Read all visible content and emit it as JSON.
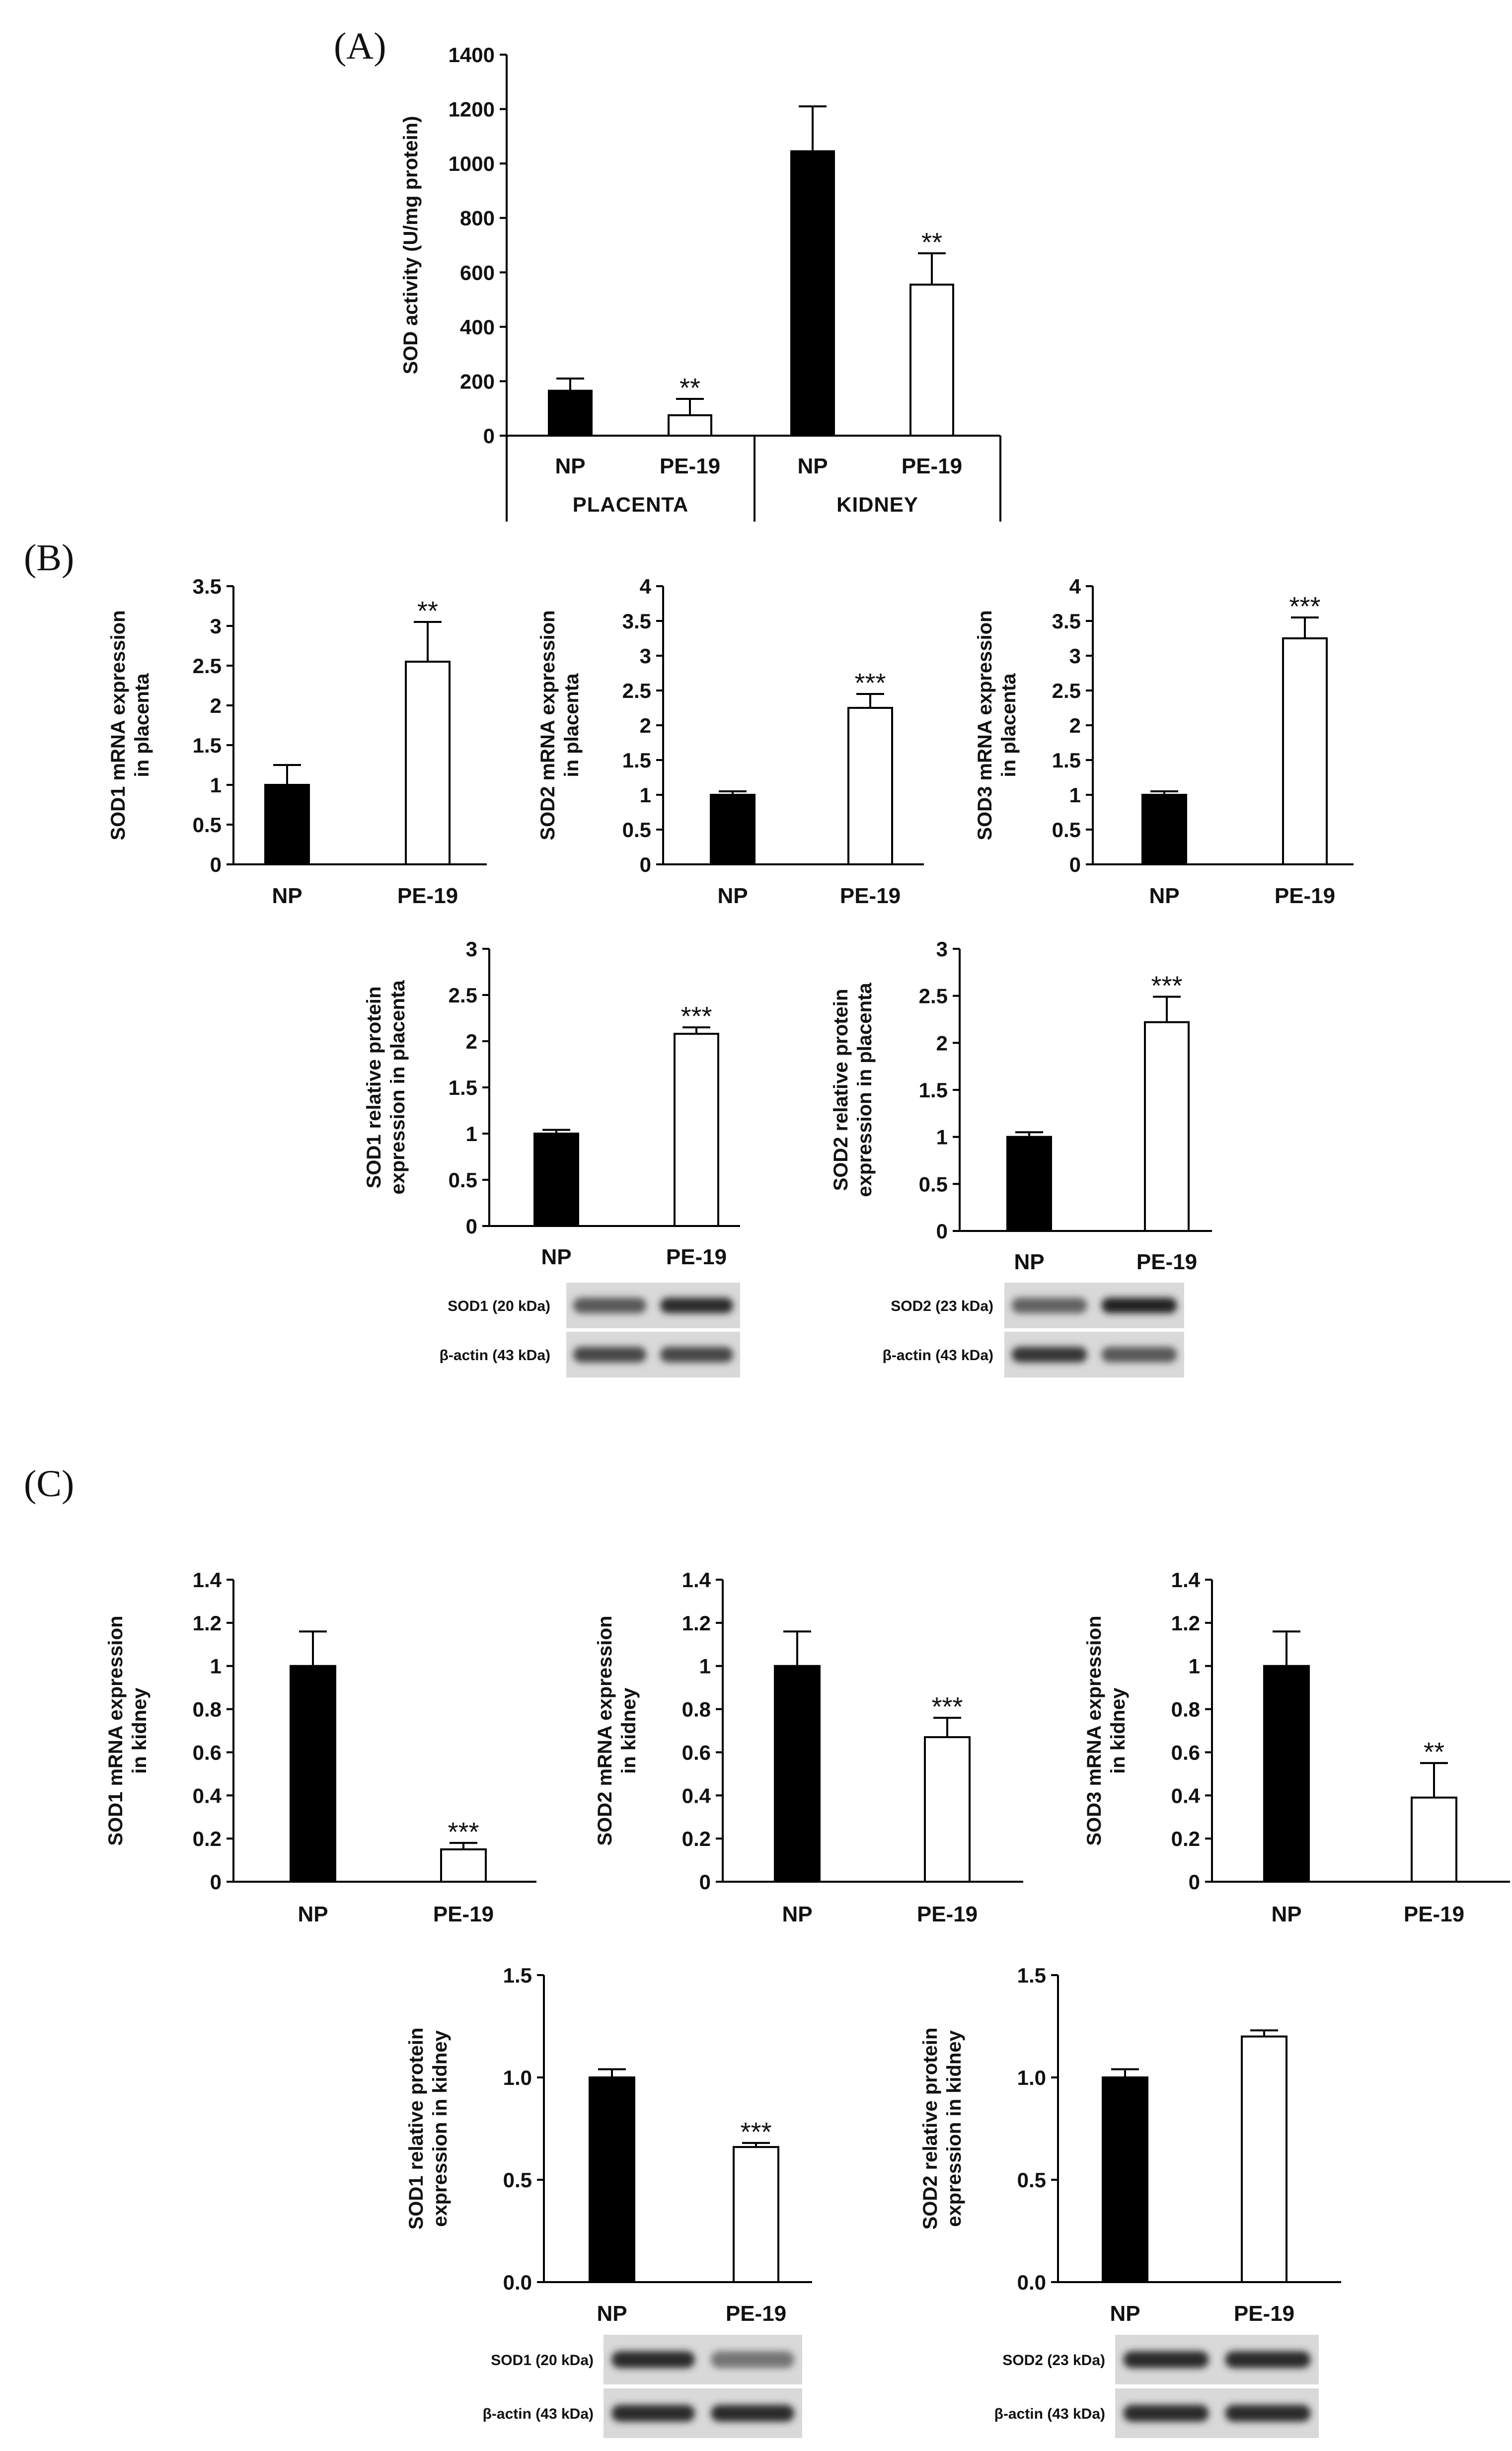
{
  "panels": {
    "A": "(A)",
    "B": "(B)",
    "C": "(C)"
  },
  "colors": {
    "np_bar": "#000000",
    "pe_bar": "#ffffff",
    "axis": "#000000"
  },
  "chart_data": [
    {
      "id": "A",
      "type": "bar",
      "title": "",
      "ylabel": "SOD activity (U/mg protein)",
      "ylim": [
        0,
        1400
      ],
      "ticks": [
        0,
        200,
        400,
        600,
        800,
        1000,
        1200,
        1400
      ],
      "tick_labels": [
        "0",
        "200",
        "400",
        "600",
        "800",
        "1000",
        "1200",
        "1400"
      ],
      "categories": [
        "NP",
        "PE-19",
        "NP",
        "PE-19"
      ],
      "groups": [
        "PLACENTA",
        "KIDNEY"
      ],
      "values": [
        165,
        75,
        1045,
        555
      ],
      "errors": [
        45,
        60,
        165,
        115
      ],
      "significance": [
        "",
        "**",
        "",
        "**"
      ]
    },
    {
      "id": "B1",
      "type": "bar",
      "ylabel": [
        "SOD1 mRNA expression",
        "in placenta"
      ],
      "ylim": [
        0,
        3.5
      ],
      "ticks": [
        0,
        0.5,
        1,
        1.5,
        2,
        2.5,
        3,
        3.5
      ],
      "tick_labels": [
        "0",
        "0.5",
        "1",
        "1.5",
        "2",
        "2.5",
        "3",
        "3.5"
      ],
      "categories": [
        "NP",
        "PE-19"
      ],
      "values": [
        1.0,
        2.55
      ],
      "errors": [
        0.25,
        0.5
      ],
      "significance": [
        "",
        "**"
      ]
    },
    {
      "id": "B2",
      "type": "bar",
      "ylabel": [
        "SOD2 mRNA expression",
        "in placenta"
      ],
      "ylim": [
        0,
        4
      ],
      "ticks": [
        0,
        0.5,
        1,
        1.5,
        2,
        2.5,
        3,
        3.5,
        4
      ],
      "tick_labels": [
        "0",
        "0.5",
        "1",
        "1.5",
        "2",
        "2.5",
        "3",
        "3.5",
        "4"
      ],
      "categories": [
        "NP",
        "PE-19"
      ],
      "values": [
        1.0,
        2.25
      ],
      "errors": [
        0.05,
        0.2
      ],
      "significance": [
        "",
        "***"
      ]
    },
    {
      "id": "B3",
      "type": "bar",
      "ylabel": [
        "SOD3 mRNA expression",
        "in placenta"
      ],
      "ylim": [
        0,
        4
      ],
      "ticks": [
        0,
        0.5,
        1,
        1.5,
        2,
        2.5,
        3,
        3.5,
        4
      ],
      "tick_labels": [
        "0",
        "0.5",
        "1",
        "1.5",
        "2",
        "2.5",
        "3",
        "3.5",
        "4"
      ],
      "categories": [
        "NP",
        "PE-19"
      ],
      "values": [
        1.0,
        3.25
      ],
      "errors": [
        0.05,
        0.3
      ],
      "significance": [
        "",
        "***"
      ]
    },
    {
      "id": "B4",
      "type": "bar",
      "ylabel": [
        "SOD1 relative protein",
        "expression in placenta"
      ],
      "ylim": [
        0,
        3
      ],
      "ticks": [
        0,
        0.5,
        1,
        1.5,
        2,
        2.5,
        3
      ],
      "tick_labels": [
        "0",
        "0.5",
        "1",
        "1.5",
        "2",
        "2.5",
        "3"
      ],
      "categories": [
        "NP",
        "PE-19"
      ],
      "values": [
        1.0,
        2.08
      ],
      "errors": [
        0.04,
        0.07
      ],
      "significance": [
        "",
        "***"
      ],
      "blots": [
        {
          "label": "SOD1 (20 kDa)",
          "bands": [
            0.6,
            0.85
          ]
        },
        {
          "label": "β-actin (43 kDa)",
          "bands": [
            0.7,
            0.7
          ]
        }
      ]
    },
    {
      "id": "B5",
      "type": "bar",
      "ylabel": [
        "SOD2 relative protein",
        "expression in placenta"
      ],
      "ylim": [
        0,
        3
      ],
      "ticks": [
        0,
        0.5,
        1,
        1.5,
        2,
        2.5,
        3
      ],
      "tick_labels": [
        "0",
        "0.5",
        "1",
        "1.5",
        "2",
        "2.5",
        "3"
      ],
      "categories": [
        "NP",
        "PE-19"
      ],
      "values": [
        1.0,
        2.22
      ],
      "errors": [
        0.05,
        0.27
      ],
      "significance": [
        "",
        "***"
      ],
      "blots": [
        {
          "label": "SOD2 (23 kDa)",
          "bands": [
            0.55,
            0.9
          ]
        },
        {
          "label": "β-actin (43 kDa)",
          "bands": [
            0.8,
            0.6
          ]
        }
      ]
    },
    {
      "id": "C1",
      "type": "bar",
      "ylabel": [
        "SOD1 mRNA expression",
        "in kidney"
      ],
      "ylim": [
        0,
        1.4
      ],
      "ticks": [
        0,
        0.2,
        0.4,
        0.6,
        0.8,
        1,
        1.2,
        1.4
      ],
      "tick_labels": [
        "0",
        "0.2",
        "0.4",
        "0.6",
        "0.8",
        "1",
        "1.2",
        "1.4"
      ],
      "categories": [
        "NP",
        "PE-19"
      ],
      "values": [
        1.0,
        0.15
      ],
      "errors": [
        0.16,
        0.03
      ],
      "significance": [
        "",
        "***"
      ]
    },
    {
      "id": "C2",
      "type": "bar",
      "ylabel": [
        "SOD2 mRNA expression",
        "in kidney"
      ],
      "ylim": [
        0,
        1.4
      ],
      "ticks": [
        0,
        0.2,
        0.4,
        0.6,
        0.8,
        1,
        1.2,
        1.4
      ],
      "tick_labels": [
        "0",
        "0.2",
        "0.4",
        "0.6",
        "0.8",
        "1",
        "1.2",
        "1.4"
      ],
      "categories": [
        "NP",
        "PE-19"
      ],
      "values": [
        1.0,
        0.67
      ],
      "errors": [
        0.16,
        0.09
      ],
      "significance": [
        "",
        "***"
      ]
    },
    {
      "id": "C3",
      "type": "bar",
      "ylabel": [
        "SOD3 mRNA expression",
        "in kidney"
      ],
      "ylim": [
        0,
        1.4
      ],
      "ticks": [
        0,
        0.2,
        0.4,
        0.6,
        0.8,
        1,
        1.2,
        1.4
      ],
      "tick_labels": [
        "0",
        "0.2",
        "0.4",
        "0.6",
        "0.8",
        "1",
        "1.2",
        "1.4"
      ],
      "categories": [
        "NP",
        "PE-19"
      ],
      "values": [
        1.0,
        0.39
      ],
      "errors": [
        0.16,
        0.16
      ],
      "significance": [
        "",
        "**"
      ]
    },
    {
      "id": "C4",
      "type": "bar",
      "ylabel": [
        "SOD1 relative protein",
        "expression in kidney"
      ],
      "ylim": [
        0,
        1.5
      ],
      "ticks": [
        0,
        0.5,
        1,
        1.5
      ],
      "tick_labels": [
        "0.0",
        "0.5",
        "1.0",
        "1.5"
      ],
      "categories": [
        "NP",
        "PE-19"
      ],
      "values": [
        1.0,
        0.66
      ],
      "errors": [
        0.04,
        0.02
      ],
      "significance": [
        "",
        "***"
      ],
      "blots": [
        {
          "label": "SOD1 (20 kDa)",
          "bands": [
            0.85,
            0.45
          ]
        },
        {
          "label": "β-actin (43 kDa)",
          "bands": [
            0.85,
            0.85
          ]
        }
      ]
    },
    {
      "id": "C5",
      "type": "bar",
      "ylabel": [
        "SOD2 relative protein",
        "expression in kidney"
      ],
      "ylim": [
        0,
        1.5
      ],
      "ticks": [
        0,
        0.5,
        1,
        1.5
      ],
      "tick_labels": [
        "0.0",
        "0.5",
        "1.0",
        "1.5"
      ],
      "categories": [
        "NP",
        "PE-19"
      ],
      "values": [
        1.0,
        1.2
      ],
      "errors": [
        0.04,
        0.03
      ],
      "significance": [
        "",
        ""
      ],
      "blots": [
        {
          "label": "SOD2 (23 kDa)",
          "bands": [
            0.85,
            0.85
          ]
        },
        {
          "label": "β-actin (43 kDa)",
          "bands": [
            0.85,
            0.85
          ]
        }
      ]
    }
  ]
}
